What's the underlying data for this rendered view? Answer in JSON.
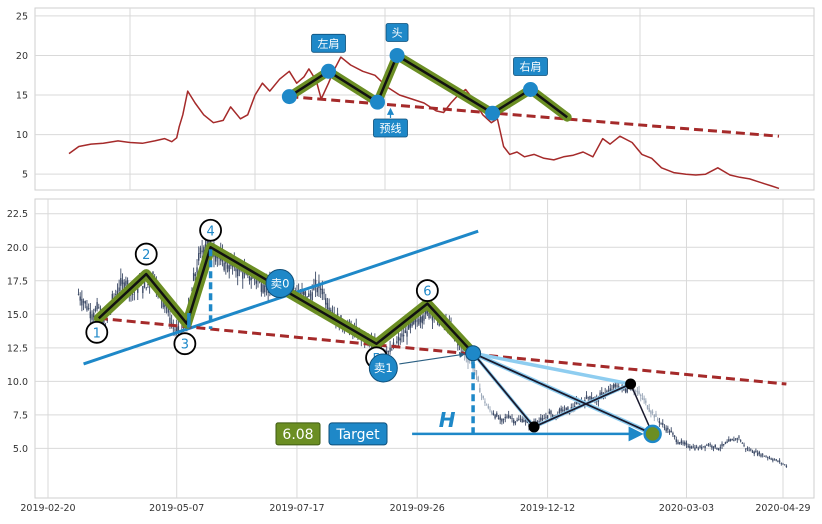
{
  "colors": {
    "price_line": "#a52a2a",
    "neckline": "#a52a2a",
    "pattern_fill": "#6b8e23",
    "pattern_edge": "#111111",
    "marker": "#1e88c8",
    "uptrend": "#1e88c8",
    "label_bg": "#1e88c8",
    "target_value_bg": "#6b8e23",
    "grid": "#d9d9d9"
  },
  "chart_data": [
    {
      "type": "line",
      "panel": "top",
      "ylim": [
        3,
        26
      ],
      "y_ticks": [
        5,
        10,
        15,
        20,
        25
      ],
      "grid": true,
      "x_span_days": [
        -5,
        425
      ],
      "price_series": [
        [
          0,
          7.6
        ],
        [
          8,
          8.5
        ],
        [
          18,
          8.8
        ],
        [
          28,
          8.9
        ],
        [
          40,
          9.2
        ],
        [
          50,
          9.0
        ],
        [
          60,
          8.9
        ],
        [
          70,
          9.2
        ],
        [
          78,
          9.5
        ],
        [
          84,
          9.1
        ],
        [
          88,
          9.6
        ],
        [
          90,
          11.0
        ],
        [
          93,
          12.5
        ],
        [
          97,
          15.5
        ],
        [
          103,
          14.0
        ],
        [
          110,
          12.5
        ],
        [
          118,
          11.5
        ],
        [
          126,
          11.8
        ],
        [
          132,
          13.5
        ],
        [
          140,
          12.0
        ],
        [
          146,
          12.5
        ],
        [
          152,
          15.0
        ],
        [
          158,
          16.5
        ],
        [
          164,
          15.5
        ],
        [
          172,
          17.0
        ],
        [
          180,
          18.0
        ],
        [
          186,
          16.5
        ],
        [
          192,
          17.3
        ],
        [
          196,
          18.3
        ],
        [
          202,
          16.8
        ],
        [
          206,
          14.5
        ],
        [
          212,
          16.5
        ],
        [
          216,
          18.0
        ],
        [
          222,
          19.8
        ],
        [
          230,
          18.8
        ],
        [
          240,
          18.0
        ],
        [
          250,
          17.5
        ],
        [
          260,
          16.0
        ],
        [
          270,
          15.0
        ],
        [
          280,
          14.5
        ],
        [
          290,
          14.0
        ],
        [
          300,
          13.0
        ],
        [
          306,
          12.8
        ],
        [
          312,
          14.0
        ],
        [
          318,
          15.0
        ],
        [
          324,
          15.7
        ],
        [
          330,
          14.5
        ],
        [
          338,
          12.5
        ],
        [
          345,
          11.5
        ],
        [
          350,
          12.0
        ],
        [
          355,
          8.5
        ],
        [
          360,
          7.5
        ],
        [
          366,
          7.8
        ],
        [
          372,
          7.2
        ],
        [
          380,
          7.5
        ],
        [
          388,
          7.0
        ],
        [
          396,
          6.8
        ],
        [
          404,
          7.2
        ],
        [
          412,
          7.4
        ],
        [
          420,
          7.8
        ],
        [
          428,
          7.2
        ],
        [
          436,
          9.5
        ],
        [
          442,
          8.8
        ],
        [
          450,
          9.8
        ],
        [
          460,
          9.0
        ],
        [
          468,
          7.5
        ],
        [
          476,
          7.0
        ],
        [
          484,
          5.8
        ],
        [
          494,
          5.2
        ],
        [
          504,
          5.0
        ],
        [
          512,
          4.9
        ],
        [
          520,
          5.0
        ],
        [
          530,
          5.8
        ],
        [
          540,
          4.9
        ],
        [
          548,
          4.6
        ],
        [
          556,
          4.4
        ],
        [
          562,
          4.1
        ],
        [
          568,
          3.8
        ],
        [
          574,
          3.5
        ],
        [
          580,
          3.2
        ]
      ],
      "pattern": {
        "points": [
          {
            "x": 180,
            "y": 14.8,
            "label": ""
          },
          {
            "x": 212,
            "y": 18.0,
            "label": "左肩"
          },
          {
            "x": 252,
            "y": 14.1,
            "label": "预线"
          },
          {
            "x": 268,
            "y": 20.0,
            "label": "头"
          },
          {
            "x": 346,
            "y": 12.7,
            "label": ""
          },
          {
            "x": 377,
            "y": 15.7,
            "label": "右肩"
          },
          {
            "x": 407,
            "y": 12.2,
            "label": ""
          }
        ],
        "neckline": [
          [
            180,
            14.8
          ],
          [
            580,
            9.8
          ]
        ]
      }
    },
    {
      "type": "candlestick",
      "panel": "bottom",
      "ylim": [
        1.3,
        23.6
      ],
      "y_ticks": [
        5.0,
        7.5,
        10.0,
        12.5,
        15.0,
        17.5,
        20.0,
        22.5
      ],
      "y_tick_labels": [
        "5.0",
        "7.5",
        "10.0",
        "12.5",
        "15.0",
        "17.5",
        "20.0",
        "22.5"
      ],
      "x_ticks": [
        "2019-02-20",
        "2019-05-07",
        "2019-07-17",
        "2019-09-26",
        "2019-12-12",
        "2020-03-03",
        "2020-04-29"
      ],
      "x_tick_values": [
        0,
        76,
        147,
        218,
        295,
        377,
        434
      ],
      "x_lim": [
        0,
        440
      ],
      "grid": true,
      "close_series": [
        [
          18,
          16.5
        ],
        [
          22,
          15.8
        ],
        [
          26,
          15.0
        ],
        [
          30,
          15.5
        ],
        [
          34,
          14.0
        ],
        [
          38,
          16.0
        ],
        [
          42,
          17.0
        ],
        [
          46,
          17.5
        ],
        [
          50,
          16.5
        ],
        [
          54,
          17.2
        ],
        [
          58,
          17.0
        ],
        [
          62,
          18.0
        ],
        [
          66,
          16.5
        ],
        [
          70,
          15.5
        ],
        [
          74,
          14.0
        ],
        [
          78,
          13.5
        ],
        [
          82,
          14.5
        ],
        [
          86,
          17.5
        ],
        [
          90,
          19.5
        ],
        [
          94,
          20.5
        ],
        [
          98,
          19.8
        ],
        [
          102,
          19.0
        ],
        [
          106,
          18.7
        ],
        [
          110,
          18.5
        ],
        [
          114,
          18.2
        ],
        [
          118,
          17.9
        ],
        [
          122,
          17.6
        ],
        [
          126,
          17.3
        ],
        [
          130,
          17.0
        ],
        [
          134,
          16.7
        ],
        [
          138,
          17.5
        ],
        [
          142,
          17.2
        ],
        [
          146,
          16.8
        ],
        [
          150,
          16.5
        ],
        [
          154,
          16.3
        ],
        [
          158,
          17.0
        ],
        [
          162,
          16.9
        ],
        [
          166,
          15.5
        ],
        [
          172,
          14.5
        ],
        [
          178,
          14.0
        ],
        [
          184,
          13.5
        ],
        [
          190,
          13.0
        ],
        [
          196,
          12.5
        ],
        [
          202,
          12.2
        ],
        [
          208,
          13.2
        ],
        [
          214,
          14.0
        ],
        [
          220,
          14.8
        ],
        [
          226,
          15.2
        ],
        [
          232,
          14.5
        ],
        [
          238,
          14.0
        ],
        [
          242,
          13.0
        ],
        [
          246,
          12.0
        ],
        [
          250,
          11.5
        ],
        [
          253,
          10.5
        ],
        [
          256,
          9.0
        ],
        [
          260,
          8.0
        ],
        [
          264,
          7.5
        ],
        [
          268,
          7.0
        ],
        [
          272,
          7.5
        ],
        [
          276,
          7.0
        ],
        [
          280,
          7.2
        ],
        [
          284,
          6.8
        ],
        [
          288,
          7.0
        ],
        [
          292,
          7.1
        ],
        [
          296,
          7.6
        ],
        [
          300,
          7.4
        ],
        [
          304,
          7.9
        ],
        [
          308,
          7.8
        ],
        [
          312,
          8.3
        ],
        [
          316,
          8.5
        ],
        [
          320,
          8.9
        ],
        [
          324,
          8.6
        ],
        [
          328,
          9.1
        ],
        [
          332,
          9.3
        ],
        [
          336,
          9.7
        ],
        [
          340,
          9.4
        ],
        [
          344,
          9.6
        ],
        [
          348,
          9.2
        ],
        [
          352,
          8.6
        ],
        [
          356,
          7.8
        ],
        [
          360,
          7.2
        ],
        [
          364,
          6.6
        ],
        [
          368,
          6.2
        ],
        [
          372,
          5.5
        ],
        [
          378,
          5.2
        ],
        [
          384,
          5.0
        ],
        [
          390,
          5.3
        ],
        [
          396,
          5.0
        ],
        [
          402,
          5.5
        ],
        [
          408,
          5.8
        ],
        [
          412,
          5.0
        ],
        [
          416,
          4.8
        ],
        [
          420,
          4.6
        ],
        [
          424,
          4.4
        ],
        [
          428,
          4.2
        ],
        [
          432,
          4.0
        ],
        [
          436,
          3.7
        ]
      ],
      "pattern": {
        "points": [
          {
            "x": 30,
            "y": 14.7,
            "label": "1"
          },
          {
            "x": 58,
            "y": 18.0,
            "label": "2"
          },
          {
            "x": 82,
            "y": 14.3,
            "label": "3"
          },
          {
            "x": 96,
            "y": 20.0,
            "label": "4"
          },
          {
            "x": 194,
            "y": 12.8,
            "label": "5"
          },
          {
            "x": 224,
            "y": 15.8,
            "label": "6"
          },
          {
            "x": 251,
            "y": 12.1,
            "label": ""
          }
        ],
        "neckline": [
          [
            30,
            14.7
          ],
          [
            436,
            9.8
          ]
        ],
        "uptrend_line": [
          [
            21,
            11.3
          ],
          [
            254,
            21.2
          ]
        ],
        "target_line": [
          [
            215,
            6.08
          ],
          [
            357,
            6.08
          ]
        ],
        "target_value": "6.08",
        "target_label": "Target",
        "height_marker": "H",
        "sell_points": [
          {
            "label": "卖0",
            "x": 137,
            "y": 17.3
          },
          {
            "label": "卖1",
            "x": 198,
            "y": 11.0
          }
        ],
        "projection": {
          "breakout": [
            251,
            12.1
          ],
          "low": [
            287,
            6.6
          ],
          "rebound": [
            344,
            9.8
          ],
          "target": [
            357,
            6.08
          ]
        }
      }
    }
  ]
}
